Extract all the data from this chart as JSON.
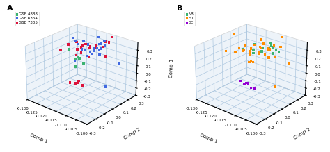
{
  "panel_A": {
    "label": "A",
    "legend_labels": [
      "GSE 4888",
      "GSE 6364",
      "GSE 7305"
    ],
    "legend_colors": [
      "#3cb371",
      "#4169e1",
      "#dc143c"
    ]
  },
  "panel_B": {
    "label": "B",
    "legend_labels": [
      "NB",
      "EU",
      "EC"
    ],
    "legend_colors": [
      "#3cb371",
      "#ff8c00",
      "#9400d3"
    ]
  },
  "xlabel": "Comp 1",
  "ylabel": "Comp 2",
  "zlabel": "Comp 3",
  "xlim": [
    -0.13,
    -0.1
  ],
  "ylim": [
    -0.3,
    0.3
  ],
  "zlim": [
    -0.3,
    0.4
  ],
  "pane_color": "#dce9f5",
  "floor_color": "#dce9f5",
  "grid_color": "#aec8e0",
  "marker": "s",
  "marker_size": 6,
  "tick_fontsize": 4,
  "label_fontsize": 5,
  "legend_fontsize": 4,
  "elev": 25,
  "azim": -50
}
